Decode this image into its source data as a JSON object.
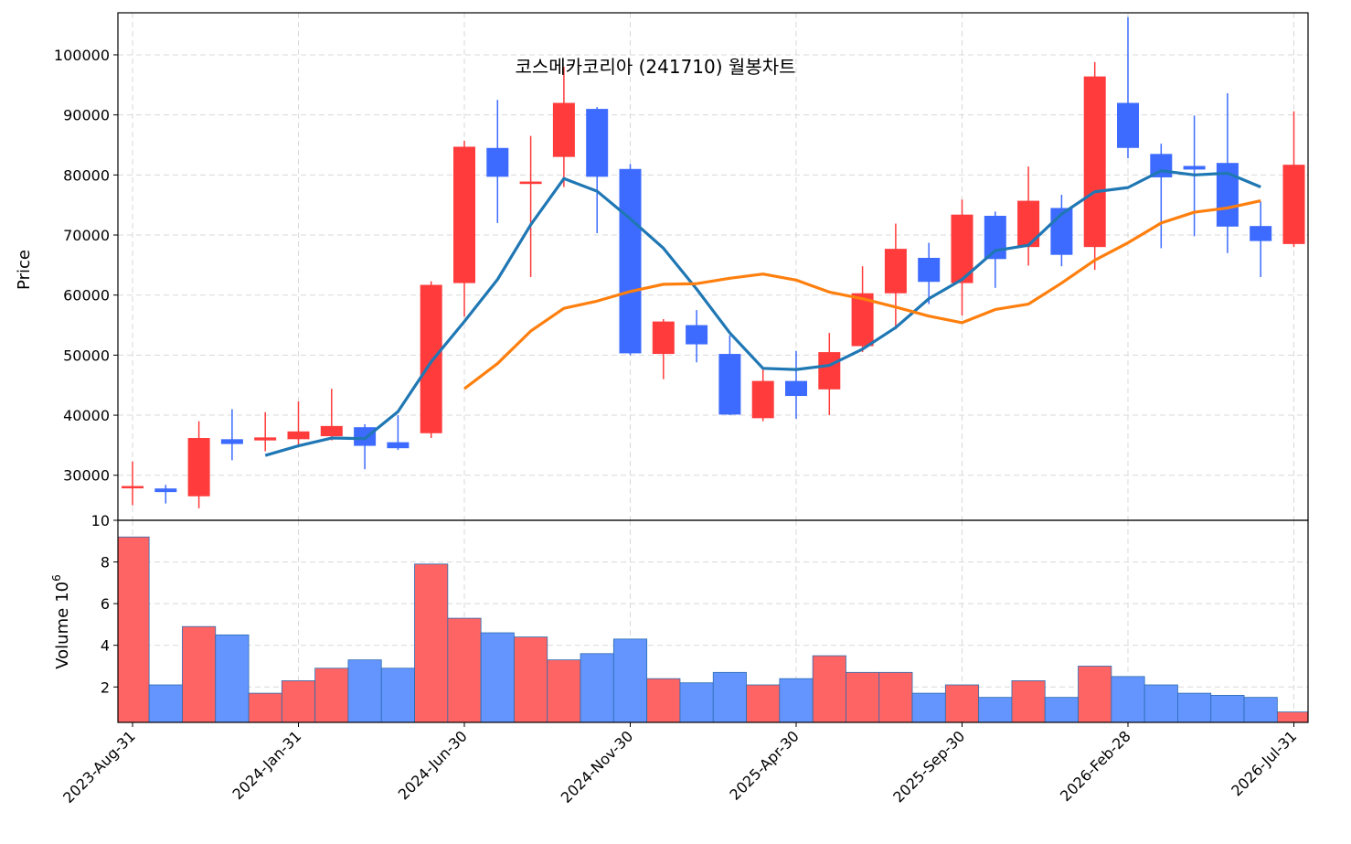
{
  "chart_data": {
    "type": "candlestick",
    "title": "코스메카코리아 (241710) 월봉차트",
    "price_ylabel": "Price",
    "volume_ylabel": "Volume",
    "volume_exponent": "6",
    "price_ylim": [
      22500,
      107000
    ],
    "volume_ylim": [
      0.3,
      10
    ],
    "price_yticks": [
      30000,
      40000,
      50000,
      60000,
      70000,
      80000,
      90000,
      100000
    ],
    "volume_yticks": [
      2,
      4,
      6,
      8,
      10
    ],
    "x_tick_labels": [
      "2023-Aug-31",
      "2024-Jan-31",
      "2024-Jun-30",
      "2024-Nov-30",
      "2025-Apr-30",
      "2025-Sep-30",
      "2026-Feb-28",
      "2026-Jul-31"
    ],
    "x_tick_index": [
      0,
      5,
      10,
      15,
      20,
      25,
      30,
      35
    ],
    "grid": true,
    "up_color": "#ff3b3b",
    "down_color": "#3d6bff",
    "vol_up_color": "#ff6464",
    "vol_down_color": "#6495ff",
    "ma_colors": [
      "#1f77b4",
      "#ff7f0e"
    ],
    "months": [
      "2023-Aug",
      "2023-Sep",
      "2023-Oct",
      "2023-Nov",
      "2023-Dec",
      "2024-Jan",
      "2024-Feb",
      "2024-Mar",
      "2024-Apr",
      "2024-May",
      "2024-Jun",
      "2024-Jul",
      "2024-Aug",
      "2024-Sep",
      "2024-Oct",
      "2024-Nov",
      "2024-Dec",
      "2025-Jan",
      "2025-Feb",
      "2025-Mar",
      "2025-Apr",
      "2025-May",
      "2025-Jun",
      "2025-Jul",
      "2025-Aug",
      "2025-Sep",
      "2025-Oct",
      "2025-Nov",
      "2025-Dec",
      "2026-Jan",
      "2026-Feb",
      "2026-Mar",
      "2026-Apr",
      "2026-May",
      "2026-Jun",
      "2026-Jul"
    ],
    "open": [
      28000,
      27800,
      26500,
      36000,
      35800,
      36000,
      36500,
      38000,
      35500,
      37000,
      62000,
      84500,
      78500,
      83000,
      91000,
      81000,
      50200,
      55000,
      50200,
      39500,
      45700,
      44300,
      51500,
      60300,
      66200,
      62000,
      73200,
      68000,
      74500,
      68000,
      92000,
      83500,
      81500,
      82000,
      71500,
      68500
    ],
    "high": [
      32300,
      28400,
      39000,
      41000,
      40500,
      42300,
      44400,
      38500,
      40000,
      62300,
      85700,
      92500,
      86500,
      98000,
      91300,
      81800,
      56000,
      57500,
      53300,
      47700,
      50700,
      53700,
      64800,
      71900,
      68700,
      75900,
      73900,
      81400,
      76700,
      98800,
      106300,
      85200,
      89900,
      93600,
      75600,
      90600
    ],
    "low": [
      25000,
      25300,
      24500,
      32500,
      34000,
      35000,
      35800,
      31000,
      34200,
      36200,
      56400,
      72000,
      63000,
      78000,
      70300,
      50000,
      46000,
      48800,
      40000,
      39000,
      39400,
      40000,
      50500,
      54300,
      58500,
      56600,
      61200,
      64900,
      64800,
      64200,
      82800,
      67800,
      69800,
      67000,
      63000,
      68000
    ],
    "close": [
      28200,
      27200,
      36200,
      35200,
      36300,
      37300,
      38200,
      34900,
      34500,
      61700,
      84700,
      79700,
      78900,
      92000,
      79700,
      50300,
      55600,
      51800,
      40100,
      45700,
      43200,
      50500,
      60300,
      67700,
      62200,
      73400,
      66000,
      75700,
      66700,
      96400,
      84500,
      79600,
      80900,
      71400,
      69000,
      81700
    ],
    "ma5": [
      null,
      null,
      null,
      null,
      33300,
      34900,
      36200,
      36100,
      40600,
      48900,
      55600,
      62600,
      71700,
      79400,
      77300,
      72700,
      67800,
      61000,
      53700,
      47800,
      47600,
      48300,
      51000,
      54600,
      59400,
      62600,
      67400,
      68300,
      73500,
      77200,
      77900,
      80700,
      80000,
      80300,
      78000,
      null
    ],
    "ma10": [
      null,
      null,
      null,
      null,
      null,
      null,
      null,
      null,
      null,
      null,
      44400,
      48600,
      54000,
      57800,
      59000,
      60600,
      61800,
      61900,
      62800,
      63500,
      62500,
      60500,
      59400,
      58000,
      56500,
      55400,
      57600,
      58500,
      62000,
      65800,
      68700,
      72000,
      73800,
      74500,
      75700,
      null
    ],
    "volume": [
      9.2,
      2.1,
      4.9,
      4.5,
      1.7,
      2.3,
      2.9,
      3.3,
      2.9,
      7.9,
      5.3,
      4.6,
      4.4,
      3.3,
      3.6,
      4.3,
      2.4,
      2.2,
      2.7,
      2.1,
      2.4,
      3.5,
      2.7,
      2.7,
      1.7,
      2.1,
      1.5,
      2.3,
      1.5,
      3.0,
      2.5,
      2.1,
      1.7,
      1.6,
      1.5,
      0.8
    ]
  }
}
